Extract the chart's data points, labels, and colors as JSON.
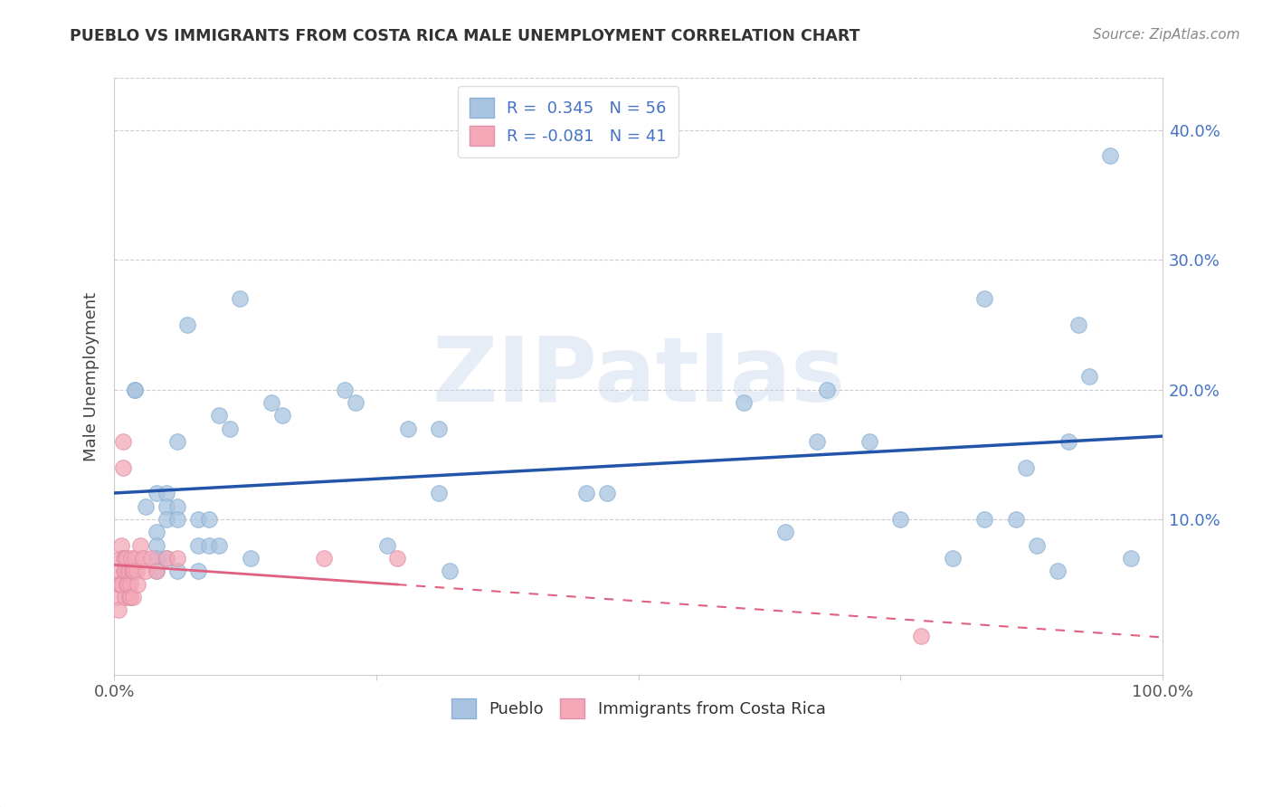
{
  "title": "PUEBLO VS IMMIGRANTS FROM COSTA RICA MALE UNEMPLOYMENT CORRELATION CHART",
  "source": "Source: ZipAtlas.com",
  "xlabel": "",
  "ylabel": "Male Unemployment",
  "watermark": "ZIPatlas",
  "xlim": [
    0,
    1.0
  ],
  "ylim": [
    -0.02,
    0.44
  ],
  "xticks": [
    0.0,
    0.25,
    0.5,
    0.75,
    1.0
  ],
  "xticklabels": [
    "0.0%",
    "",
    "",
    "",
    "100.0%"
  ],
  "yticks": [
    0.0,
    0.1,
    0.2,
    0.3,
    0.4
  ],
  "yticklabels": [
    "",
    "10.0%",
    "20.0%",
    "30.0%",
    "40.0%"
  ],
  "pueblo_R": 0.345,
  "pueblo_N": 56,
  "cr_R": -0.081,
  "cr_N": 41,
  "pueblo_color": "#a8c4e0",
  "cr_color": "#f4a8b8",
  "pueblo_line_color": "#2255aa",
  "cr_line_color": "#e06080",
  "legend_label1": "Pueblo",
  "legend_label2": "Immigrants from Costa Rica",
  "pueblo_x": [
    0.02,
    0.02,
    0.03,
    0.04,
    0.04,
    0.04,
    0.04,
    0.04,
    0.05,
    0.05,
    0.05,
    0.05,
    0.06,
    0.06,
    0.06,
    0.06,
    0.07,
    0.08,
    0.08,
    0.08,
    0.09,
    0.09,
    0.1,
    0.1,
    0.11,
    0.12,
    0.13,
    0.15,
    0.16,
    0.22,
    0.23,
    0.26,
    0.28,
    0.31,
    0.31,
    0.32,
    0.45,
    0.47,
    0.6,
    0.64,
    0.67,
    0.68,
    0.72,
    0.75,
    0.8,
    0.83,
    0.83,
    0.86,
    0.87,
    0.88,
    0.9,
    0.91,
    0.92,
    0.93,
    0.95,
    0.97
  ],
  "pueblo_y": [
    0.2,
    0.2,
    0.11,
    0.12,
    0.09,
    0.08,
    0.07,
    0.06,
    0.12,
    0.11,
    0.1,
    0.07,
    0.16,
    0.11,
    0.1,
    0.06,
    0.25,
    0.1,
    0.08,
    0.06,
    0.1,
    0.08,
    0.18,
    0.08,
    0.17,
    0.27,
    0.07,
    0.19,
    0.18,
    0.2,
    0.19,
    0.08,
    0.17,
    0.17,
    0.12,
    0.06,
    0.12,
    0.12,
    0.19,
    0.09,
    0.16,
    0.2,
    0.16,
    0.1,
    0.07,
    0.27,
    0.1,
    0.1,
    0.14,
    0.08,
    0.06,
    0.16,
    0.25,
    0.21,
    0.38,
    0.07
  ],
  "cr_x": [
    0.003,
    0.004,
    0.005,
    0.005,
    0.006,
    0.006,
    0.007,
    0.007,
    0.008,
    0.008,
    0.009,
    0.009,
    0.01,
    0.01,
    0.01,
    0.012,
    0.012,
    0.013,
    0.013,
    0.014,
    0.014,
    0.015,
    0.015,
    0.016,
    0.017,
    0.018,
    0.018,
    0.019,
    0.02,
    0.021,
    0.022,
    0.025,
    0.027,
    0.03,
    0.035,
    0.04,
    0.05,
    0.06,
    0.2,
    0.27,
    0.77
  ],
  "cr_y": [
    0.04,
    0.03,
    0.06,
    0.05,
    0.07,
    0.05,
    0.08,
    0.05,
    0.16,
    0.14,
    0.07,
    0.06,
    0.07,
    0.06,
    0.04,
    0.07,
    0.05,
    0.06,
    0.05,
    0.04,
    0.06,
    0.05,
    0.04,
    0.07,
    0.06,
    0.06,
    0.04,
    0.06,
    0.07,
    0.06,
    0.05,
    0.08,
    0.07,
    0.06,
    0.07,
    0.06,
    0.07,
    0.07,
    0.07,
    0.07,
    0.01
  ]
}
